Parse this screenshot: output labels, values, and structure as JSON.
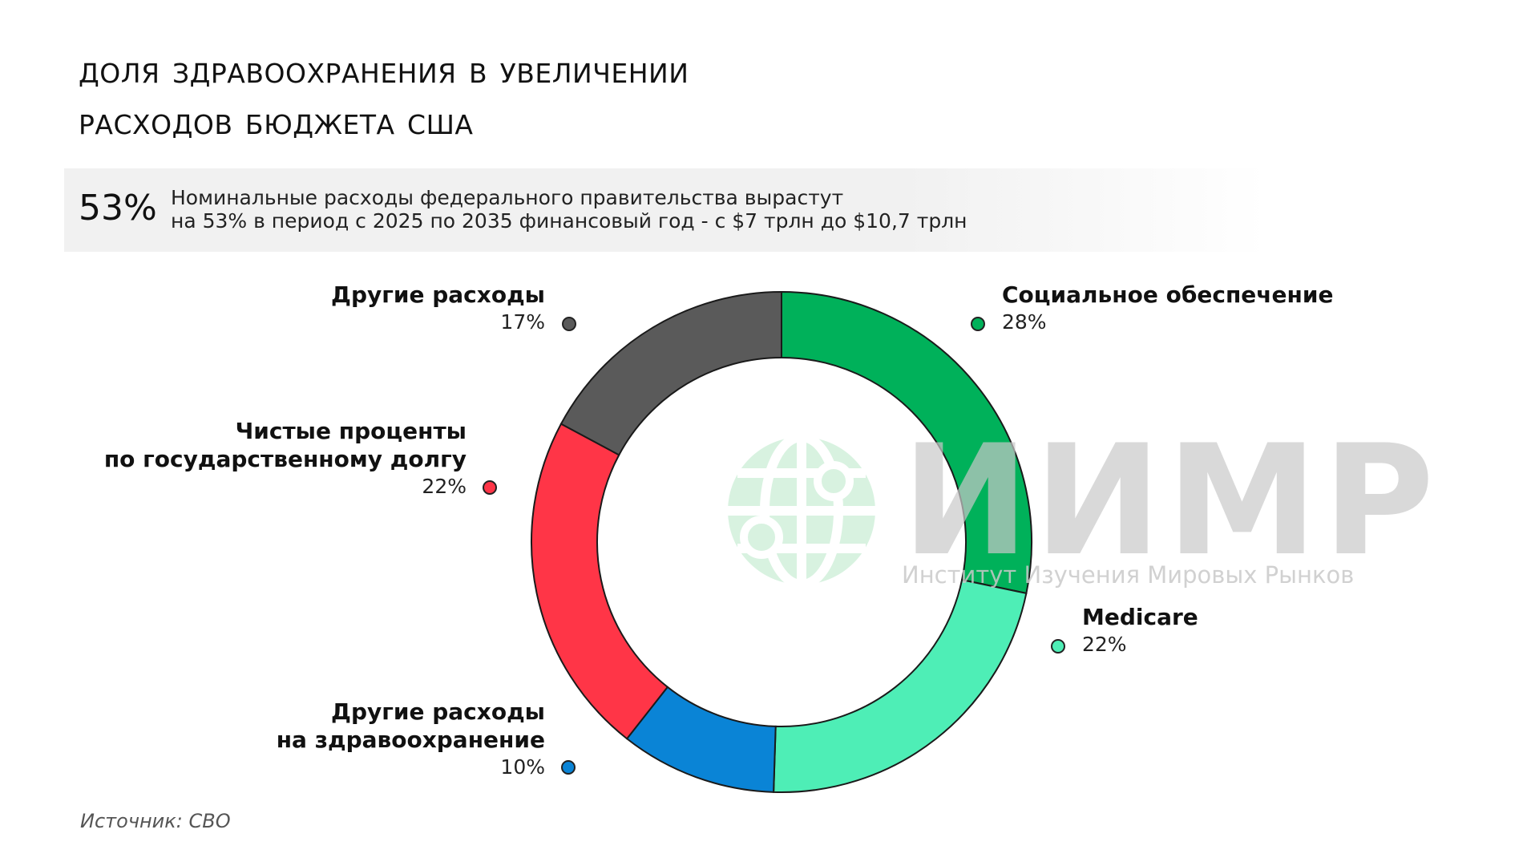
{
  "header": {
    "title_line1": "Доля здравоохранения в увеличении",
    "title_line2": "расходов бюджета США"
  },
  "highlight": {
    "value": "53%",
    "text_line1": "Номинальные расходы федерального правительства вырастут",
    "text_line2": "на 53% в период с 2025 по 2035 финансовый год - с $7 трлн до $10,7 трлн"
  },
  "watermark": {
    "logo": "globe-logo",
    "text": "ИИМР",
    "subtitle": "Институт Изучения Мировых Рынков"
  },
  "source": "Источник: CBO",
  "chart_data": {
    "type": "pie",
    "donut": true,
    "start_angle_deg": 0,
    "direction": "clockwise",
    "slices": [
      {
        "name": "Социальное обеспечение",
        "value": 28,
        "label": "28%",
        "color": "#00b15a"
      },
      {
        "name": "Medicare",
        "value": 22,
        "label": "22%",
        "color": "#4eeeb6"
      },
      {
        "name_line1": "Другие расходы",
        "name_line2": "на здравоохранение",
        "value": 10,
        "label": "10%",
        "color": "#0a84d6"
      },
      {
        "name_line1": "Чистые проценты",
        "name_line2": "по государственному долгу",
        "value": 22,
        "label": "22%",
        "color": "#ff3547"
      },
      {
        "name": "Другие расходы",
        "value": 17,
        "label": "17%",
        "color": "#5a5a5a"
      }
    ]
  }
}
